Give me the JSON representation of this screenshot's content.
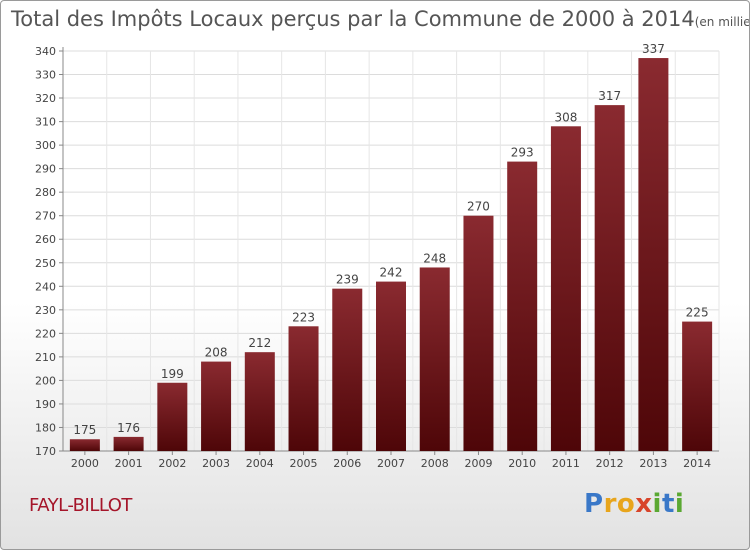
{
  "title": "Total des Impôts Locaux perçus par la Commune de 2000 à 2014",
  "unit": "(en milliers d'€)",
  "commune": "FAYL-BILLOT",
  "logo": {
    "text": "Proxiti",
    "letters": [
      {
        "ch": "P",
        "color": "#3a78c8"
      },
      {
        "ch": "r",
        "color": "#e8a51c"
      },
      {
        "ch": "o",
        "color": "#e8a51c"
      },
      {
        "ch": "x",
        "color": "#d8442a"
      },
      {
        "ch": "i",
        "color": "#5aa832"
      },
      {
        "ch": "t",
        "color": "#3a78c8"
      },
      {
        "ch": "i",
        "color": "#5aa832"
      }
    ]
  },
  "chart_data": {
    "type": "bar",
    "categories": [
      "2000",
      "2001",
      "2002",
      "2003",
      "2004",
      "2005",
      "2006",
      "2007",
      "2008",
      "2009",
      "2010",
      "2011",
      "2012",
      "2013",
      "2014"
    ],
    "values": [
      175,
      176,
      199,
      208,
      212,
      223,
      239,
      242,
      248,
      270,
      293,
      308,
      317,
      337,
      225
    ],
    "ylim": [
      170,
      340
    ],
    "yticks": [
      170,
      180,
      190,
      200,
      210,
      220,
      230,
      240,
      250,
      260,
      270,
      280,
      290,
      300,
      310,
      320,
      330,
      340
    ],
    "grid": true,
    "bar_color": "#6e1218",
    "bar_color_light": "#8a2a30",
    "xlabel": "",
    "ylabel": ""
  }
}
